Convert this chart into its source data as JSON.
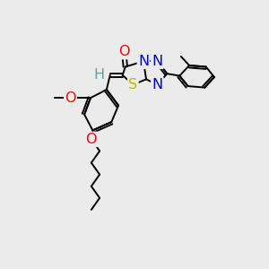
{
  "bg_color": "#ebebeb",
  "atom_colors": {
    "O": "#ff0000",
    "N": "#0000cc",
    "S": "#bbbb00",
    "C": "#000000",
    "H": "#5f9ea0"
  },
  "bond_width": 1.4,
  "fig_width": 3.0,
  "fig_height": 3.0,
  "font_size_atom": 11.5
}
